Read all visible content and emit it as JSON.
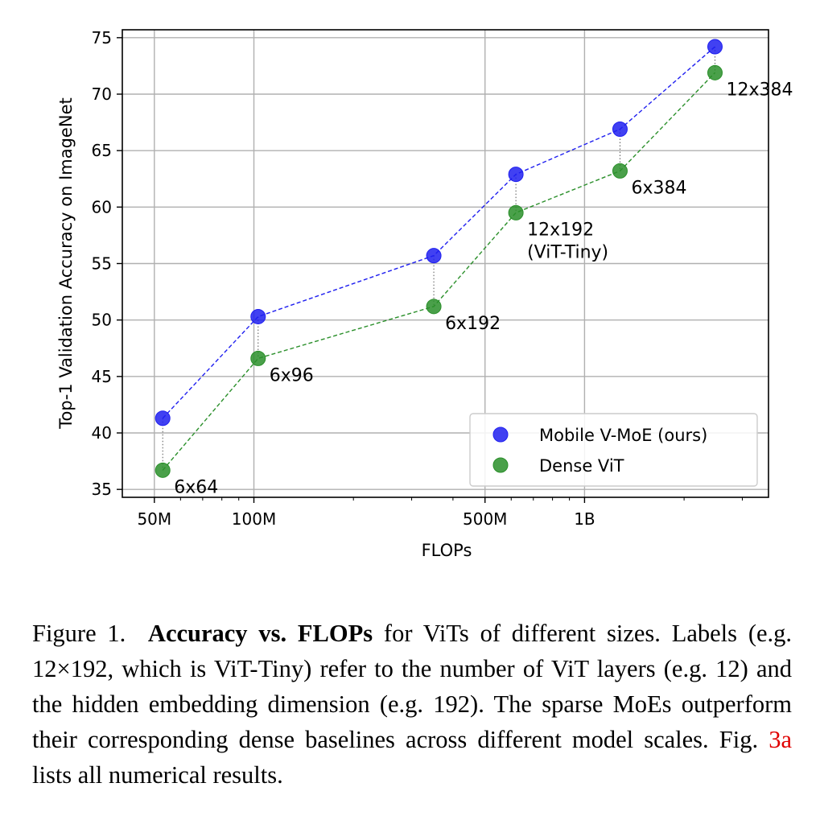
{
  "chart_data": {
    "type": "scatter",
    "xscale": "log",
    "xlabel": "FLOPs",
    "ylabel": "Top-1 Validation Accuracy on ImageNet",
    "xlim": [
      40,
      3600
    ],
    "ylim": [
      34.3,
      75.7
    ],
    "x_ticks": [
      {
        "value": 50,
        "label": "50M"
      },
      {
        "value": 100,
        "label": "100M"
      },
      {
        "value": 500,
        "label": "500M"
      },
      {
        "value": 1000,
        "label": "1B"
      }
    ],
    "y_ticks": [
      35,
      40,
      45,
      50,
      55,
      60,
      65,
      70,
      75
    ],
    "series": [
      {
        "name": "Mobile V-MoE (ours)",
        "color": "#2020f0",
        "x": [
          53,
          103,
          350,
          620,
          1280,
          2480
        ],
        "y": [
          41.3,
          50.3,
          55.7,
          62.9,
          66.9,
          74.2
        ]
      },
      {
        "name": "Dense ViT",
        "color": "#2a8f2a",
        "x": [
          53,
          103,
          350,
          620,
          1280,
          2480
        ],
        "y": [
          36.7,
          46.6,
          51.2,
          59.5,
          63.2,
          71.9
        ]
      }
    ],
    "annotations": [
      {
        "text": "6x64",
        "x": 53,
        "y": 36.7
      },
      {
        "text": "6x96",
        "x": 103,
        "y": 46.6
      },
      {
        "text": "6x192",
        "x": 350,
        "y": 51.2
      },
      {
        "text": "12x192",
        "x": 620,
        "y": 59.5
      },
      {
        "text": "(ViT-Tiny)",
        "x": 620,
        "y": 59.5
      },
      {
        "text": "6x384",
        "x": 1280,
        "y": 63.2
      },
      {
        "text": "12x384",
        "x": 2480,
        "y": 71.9
      }
    ],
    "legend_position": "lower-right",
    "grid": true
  },
  "caption": {
    "label": "Figure 1.",
    "bold": "Accuracy vs. FLOPs",
    "text_before_ref": "for ViTs of different sizes. Labels (e.g. 12×192, which is ViT-Tiny) refer to the number of ViT layers (e.g. 12) and the hidden embedding dimension (e.g. 192). The sparse MoEs outperform their corresponding dense baselines across different model scales. Fig.",
    "ref": "3a",
    "text_after_ref": "lists all numerical results."
  }
}
